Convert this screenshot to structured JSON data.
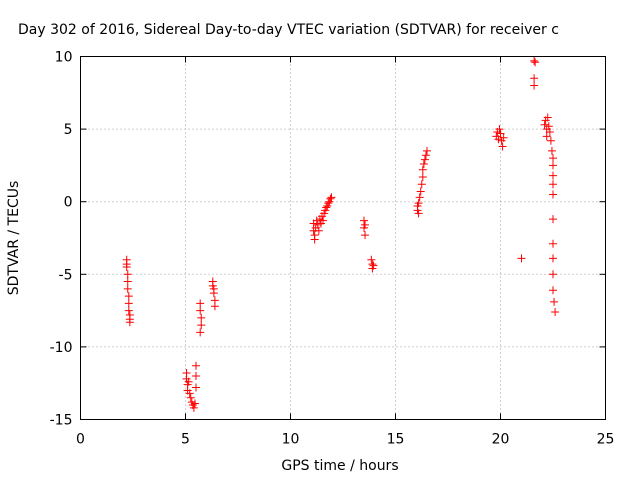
{
  "chart_data": {
    "type": "scatter",
    "title": "Day 302 of 2016, Sidereal Day-to-day VTEC variation (SDTVAR) for receiver c",
    "xlabel": "GPS time / hours",
    "ylabel": "SDTVAR / TECUs",
    "xlim": [
      0,
      25
    ],
    "ylim": [
      -15,
      10
    ],
    "xticks": [
      0,
      5,
      10,
      15,
      20,
      25
    ],
    "yticks": [
      -15,
      -10,
      -5,
      0,
      5,
      10
    ],
    "grid": true,
    "marker": "plus",
    "color": "#ff0000",
    "points": [
      [
        2.2,
        -4.0
      ],
      [
        2.2,
        -4.3
      ],
      [
        2.2,
        -4.5
      ],
      [
        2.25,
        -5.0
      ],
      [
        2.25,
        -5.5
      ],
      [
        2.25,
        -6.0
      ],
      [
        2.3,
        -6.5
      ],
      [
        2.3,
        -7.0
      ],
      [
        2.3,
        -7.5
      ],
      [
        2.35,
        -7.8
      ],
      [
        2.35,
        -8.1
      ],
      [
        2.35,
        -8.3
      ],
      [
        5.05,
        -11.8
      ],
      [
        5.05,
        -12.2
      ],
      [
        5.1,
        -12.6
      ],
      [
        5.1,
        -13.0
      ],
      [
        5.15,
        -12.4
      ],
      [
        5.2,
        -13.2
      ],
      [
        5.25,
        -13.5
      ],
      [
        5.3,
        -13.8
      ],
      [
        5.35,
        -14.0
      ],
      [
        5.4,
        -14.2
      ],
      [
        5.45,
        -13.9
      ],
      [
        5.5,
        -11.3
      ],
      [
        5.5,
        -12.0
      ],
      [
        5.5,
        -12.8
      ],
      [
        5.7,
        -7.0
      ],
      [
        5.7,
        -7.5
      ],
      [
        5.75,
        -8.0
      ],
      [
        5.75,
        -8.5
      ],
      [
        5.7,
        -9.0
      ],
      [
        6.3,
        -5.5
      ],
      [
        6.3,
        -5.8
      ],
      [
        6.35,
        -6.0
      ],
      [
        6.35,
        -6.3
      ],
      [
        6.4,
        -6.8
      ],
      [
        6.4,
        -7.2
      ],
      [
        11.1,
        -1.5
      ],
      [
        11.1,
        -2.0
      ],
      [
        11.15,
        -2.3
      ],
      [
        11.15,
        -2.6
      ],
      [
        11.2,
        -1.8
      ],
      [
        11.25,
        -1.3
      ],
      [
        11.3,
        -1.6
      ],
      [
        11.35,
        -2.0
      ],
      [
        11.4,
        -1.2
      ],
      [
        11.45,
        -1.5
      ],
      [
        11.5,
        -1.0
      ],
      [
        11.55,
        -1.3
      ],
      [
        11.6,
        -0.8
      ],
      [
        11.65,
        -0.6
      ],
      [
        11.7,
        -0.4
      ],
      [
        11.75,
        -0.3
      ],
      [
        11.8,
        -0.1
      ],
      [
        11.85,
        0.0
      ],
      [
        11.9,
        0.2
      ],
      [
        11.95,
        0.3
      ],
      [
        13.5,
        -1.3
      ],
      [
        13.5,
        -1.8
      ],
      [
        13.55,
        -2.3
      ],
      [
        13.55,
        -1.6
      ],
      [
        13.85,
        -4.0
      ],
      [
        13.9,
        -4.3
      ],
      [
        13.9,
        -4.6
      ],
      [
        13.95,
        -4.4
      ],
      [
        16.05,
        -0.3
      ],
      [
        16.05,
        -0.6
      ],
      [
        16.1,
        -0.8
      ],
      [
        16.1,
        -0.1
      ],
      [
        16.15,
        0.3
      ],
      [
        16.2,
        0.7
      ],
      [
        16.25,
        1.2
      ],
      [
        16.3,
        1.7
      ],
      [
        16.3,
        2.2
      ],
      [
        16.35,
        2.6
      ],
      [
        16.4,
        2.9
      ],
      [
        16.45,
        3.2
      ],
      [
        16.5,
        3.5
      ],
      [
        19.8,
        4.5
      ],
      [
        19.85,
        4.8
      ],
      [
        19.9,
        4.3
      ],
      [
        19.95,
        5.0
      ],
      [
        20.0,
        4.7
      ],
      [
        20.05,
        4.2
      ],
      [
        20.1,
        3.8
      ],
      [
        20.15,
        4.4
      ],
      [
        21.0,
        -3.9
      ],
      [
        21.6,
        9.7
      ],
      [
        21.65,
        9.6
      ],
      [
        21.6,
        8.5
      ],
      [
        21.6,
        8.0
      ],
      [
        22.1,
        5.3
      ],
      [
        22.15,
        5.6
      ],
      [
        22.2,
        5.0
      ],
      [
        22.2,
        4.5
      ],
      [
        22.25,
        5.8
      ],
      [
        22.3,
        5.2
      ],
      [
        22.35,
        4.8
      ],
      [
        22.4,
        4.2
      ],
      [
        22.45,
        3.5
      ],
      [
        22.5,
        3.0
      ],
      [
        22.5,
        2.5
      ],
      [
        22.5,
        1.8
      ],
      [
        22.5,
        1.2
      ],
      [
        22.5,
        0.5
      ],
      [
        22.5,
        -1.2
      ],
      [
        22.5,
        -2.9
      ],
      [
        22.5,
        -3.9
      ],
      [
        22.5,
        -5.0
      ],
      [
        22.5,
        -6.1
      ],
      [
        22.55,
        -6.9
      ],
      [
        22.6,
        -7.6
      ]
    ]
  }
}
